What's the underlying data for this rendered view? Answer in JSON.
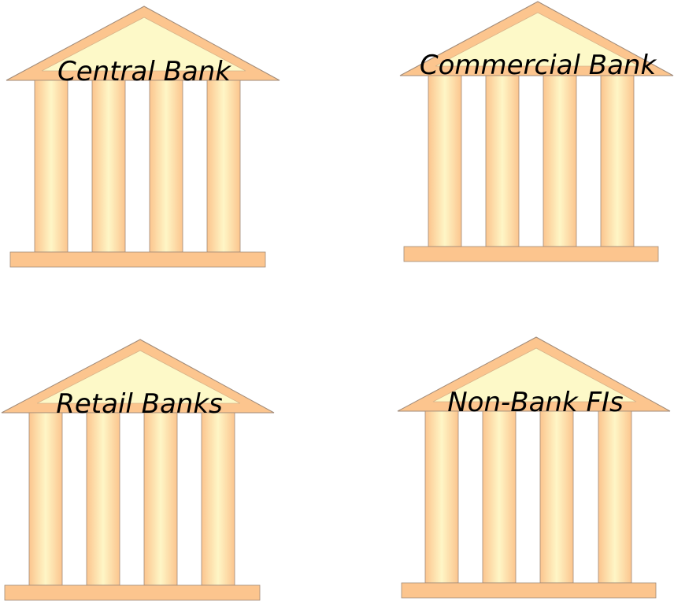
{
  "colors": {
    "roof_outer": "#fcc58e",
    "roof_inner": "#fdf9c8",
    "column_edge": "#fcc58e",
    "column_center": "#fef6c6",
    "base": "#fcc58e",
    "outline": "#a08a78"
  },
  "banks": [
    {
      "label": "Central Bank",
      "icon": "bank-building-icon"
    },
    {
      "label": "Commercial Bank",
      "icon": "bank-building-icon"
    },
    {
      "label": "Retail Banks",
      "icon": "bank-building-icon"
    },
    {
      "label": "Non-Bank FIs",
      "icon": "bank-building-icon"
    }
  ]
}
